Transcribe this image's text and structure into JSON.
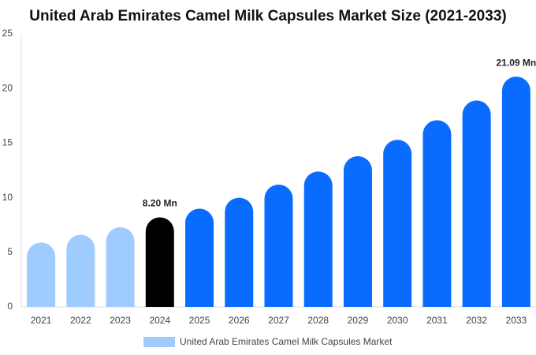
{
  "chart_data": {
    "type": "bar",
    "title": "United Arab Emirates Camel Milk Capsules Market Size (2021-2033)",
    "categories": [
      "2021",
      "2022",
      "2023",
      "2024",
      "2025",
      "2026",
      "2027",
      "2028",
      "2029",
      "2030",
      "2031",
      "2032",
      "2033"
    ],
    "series": [
      {
        "name": "United Arab Emirates Camel Milk Capsules Market",
        "color": "#a0cbff",
        "values": [
          5.9,
          6.6,
          7.3,
          8.2,
          9.0,
          10.0,
          11.2,
          12.4,
          13.8,
          15.3,
          17.1,
          18.9,
          21.09
        ],
        "value_labels": [
          null,
          null,
          null,
          "8.20 Mn",
          null,
          null,
          null,
          null,
          null,
          null,
          null,
          null,
          "21.09 Mn"
        ],
        "colors": [
          "#a0cbff",
          "#a0cbff",
          "#a0cbff",
          "#000000",
          "#0a6cff",
          "#0a6cff",
          "#0a6cff",
          "#0a6cff",
          "#0a6cff",
          "#0a6cff",
          "#0a6cff",
          "#0a6cff",
          "#0a6cff"
        ]
      }
    ],
    "ylim": [
      0,
      25
    ],
    "yticks": [
      0,
      5,
      10,
      15,
      20,
      25
    ],
    "grid": false,
    "legend": "bottom"
  }
}
